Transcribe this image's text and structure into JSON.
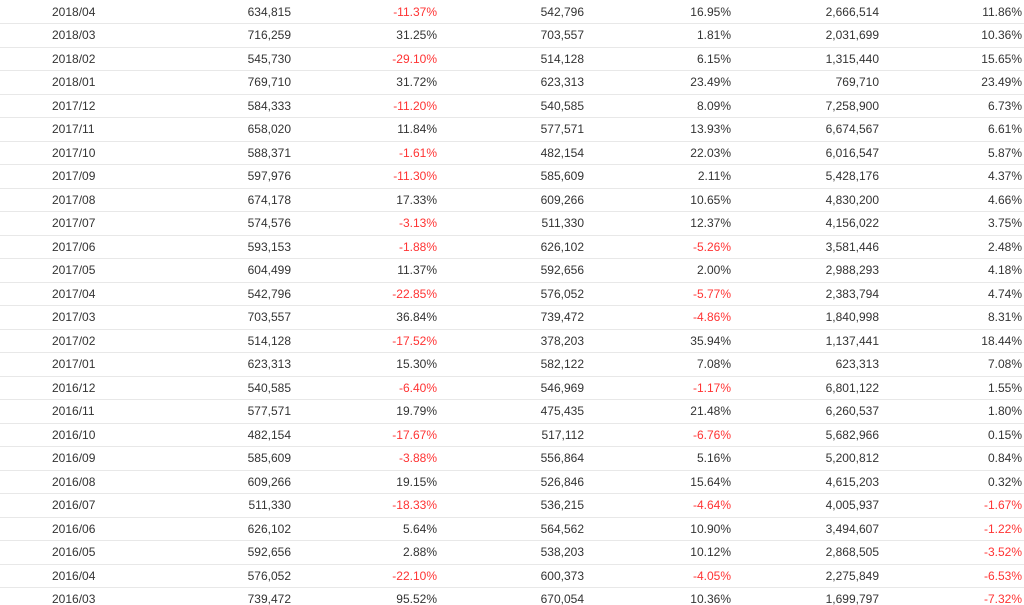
{
  "table": {
    "rows": [
      [
        "2018/04",
        "634,815",
        "-11.37%",
        "542,796",
        "16.95%",
        "2,666,514",
        "11.86%"
      ],
      [
        "2018/03",
        "716,259",
        "31.25%",
        "703,557",
        "1.81%",
        "2,031,699",
        "10.36%"
      ],
      [
        "2018/02",
        "545,730",
        "-29.10%",
        "514,128",
        "6.15%",
        "1,315,440",
        "15.65%"
      ],
      [
        "2018/01",
        "769,710",
        "31.72%",
        "623,313",
        "23.49%",
        "769,710",
        "23.49%"
      ],
      [
        "2017/12",
        "584,333",
        "-11.20%",
        "540,585",
        "8.09%",
        "7,258,900",
        "6.73%"
      ],
      [
        "2017/11",
        "658,020",
        "11.84%",
        "577,571",
        "13.93%",
        "6,674,567",
        "6.61%"
      ],
      [
        "2017/10",
        "588,371",
        "-1.61%",
        "482,154",
        "22.03%",
        "6,016,547",
        "5.87%"
      ],
      [
        "2017/09",
        "597,976",
        "-11.30%",
        "585,609",
        "2.11%",
        "5,428,176",
        "4.37%"
      ],
      [
        "2017/08",
        "674,178",
        "17.33%",
        "609,266",
        "10.65%",
        "4,830,200",
        "4.66%"
      ],
      [
        "2017/07",
        "574,576",
        "-3.13%",
        "511,330",
        "12.37%",
        "4,156,022",
        "3.75%"
      ],
      [
        "2017/06",
        "593,153",
        "-1.88%",
        "626,102",
        "-5.26%",
        "3,581,446",
        "2.48%"
      ],
      [
        "2017/05",
        "604,499",
        "11.37%",
        "592,656",
        "2.00%",
        "2,988,293",
        "4.18%"
      ],
      [
        "2017/04",
        "542,796",
        "-22.85%",
        "576,052",
        "-5.77%",
        "2,383,794",
        "4.74%"
      ],
      [
        "2017/03",
        "703,557",
        "36.84%",
        "739,472",
        "-4.86%",
        "1,840,998",
        "8.31%"
      ],
      [
        "2017/02",
        "514,128",
        "-17.52%",
        "378,203",
        "35.94%",
        "1,137,441",
        "18.44%"
      ],
      [
        "2017/01",
        "623,313",
        "15.30%",
        "582,122",
        "7.08%",
        "623,313",
        "7.08%"
      ],
      [
        "2016/12",
        "540,585",
        "-6.40%",
        "546,969",
        "-1.17%",
        "6,801,122",
        "1.55%"
      ],
      [
        "2016/11",
        "577,571",
        "19.79%",
        "475,435",
        "21.48%",
        "6,260,537",
        "1.80%"
      ],
      [
        "2016/10",
        "482,154",
        "-17.67%",
        "517,112",
        "-6.76%",
        "5,682,966",
        "0.15%"
      ],
      [
        "2016/09",
        "585,609",
        "-3.88%",
        "556,864",
        "5.16%",
        "5,200,812",
        "0.84%"
      ],
      [
        "2016/08",
        "609,266",
        "19.15%",
        "526,846",
        "15.64%",
        "4,615,203",
        "0.32%"
      ],
      [
        "2016/07",
        "511,330",
        "-18.33%",
        "536,215",
        "-4.64%",
        "4,005,937",
        "-1.67%"
      ],
      [
        "2016/06",
        "626,102",
        "5.64%",
        "564,562",
        "10.90%",
        "3,494,607",
        "-1.22%"
      ],
      [
        "2016/05",
        "592,656",
        "2.88%",
        "538,203",
        "10.12%",
        "2,868,505",
        "-3.52%"
      ],
      [
        "2016/04",
        "576,052",
        "-22.10%",
        "600,373",
        "-4.05%",
        "2,275,849",
        "-6.53%"
      ],
      [
        "2016/03",
        "739,472",
        "95.52%",
        "670,054",
        "10.36%",
        "1,699,797",
        "-7.32%"
      ]
    ]
  },
  "colors": {
    "negative": "#ff3333",
    "text": "#333333",
    "row_border": "#e8e8e8"
  }
}
